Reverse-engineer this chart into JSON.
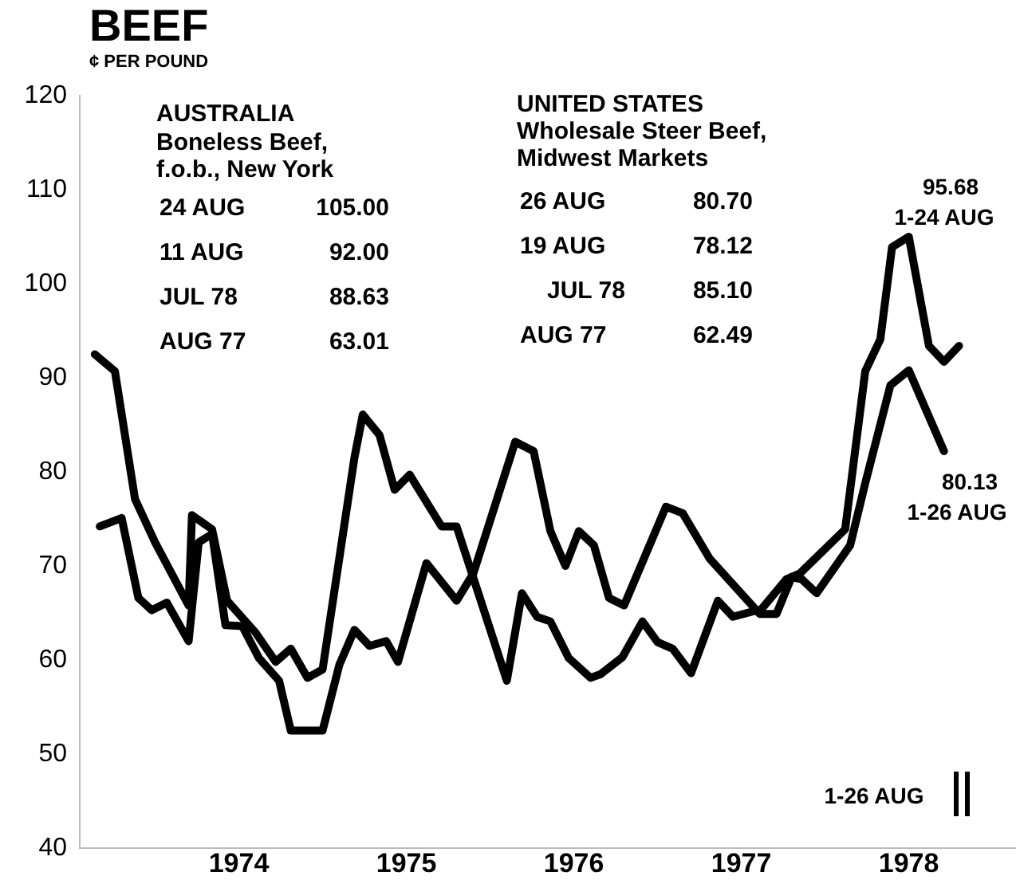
{
  "chart_data": {
    "type": "line",
    "title": "BEEF",
    "ylabel": "¢ PER POUND",
    "xlim": [
      1973.05,
      1978.64
    ],
    "xticks": [
      1974,
      1975,
      1976,
      1977,
      1978
    ],
    "ylim": [
      40,
      120
    ],
    "yticks": [
      40,
      50,
      60,
      70,
      80,
      90,
      100,
      110,
      120
    ],
    "grid": false,
    "legend": false,
    "marker": "none",
    "line_style": "solid",
    "series": [
      {
        "color": "#000000",
        "x": [
          1973.14,
          1973.26,
          1973.38,
          1973.5,
          1973.7,
          1973.72,
          1973.84,
          1973.93,
          1974.1,
          1974.22,
          1974.31,
          1974.41,
          1974.5,
          1974.69,
          1974.74,
          1974.84,
          1974.93,
          1975.02,
          1975.21,
          1975.3,
          1975.6,
          1975.69,
          1975.78,
          1975.86,
          1975.97,
          1976.1,
          1976.16,
          1976.29,
          1976.41,
          1976.5,
          1976.59,
          1976.7,
          1976.86,
          1976.95,
          1977.12,
          1977.27,
          1977.35,
          1977.62,
          1977.74,
          1977.83,
          1977.9,
          1978.0,
          1978.12,
          1978.21,
          1978.3
        ],
        "values": [
          92.5,
          90.7,
          77.1,
          72.5,
          65.8,
          75.4,
          73.9,
          66.3,
          62.9,
          59.8,
          61.2,
          58.1,
          59.0,
          81.5,
          86.1,
          83.9,
          78.1,
          79.7,
          74.2,
          74.2,
          57.8,
          67.1,
          64.6,
          64.1,
          60.2,
          58.1,
          58.5,
          60.3,
          64.1,
          61.9,
          61.2,
          58.6,
          66.3,
          64.6,
          65.4,
          68.6,
          69.2,
          73.9,
          90.7,
          94.1,
          103.9,
          105.0,
          93.4,
          91.7,
          93.4
        ]
      },
      {
        "color": "#000000",
        "x": [
          1973.17,
          1973.3,
          1973.4,
          1973.48,
          1973.57,
          1973.7,
          1973.76,
          1973.84,
          1973.92,
          1974.02,
          1974.12,
          1974.24,
          1974.31,
          1974.5,
          1974.6,
          1974.69,
          1974.78,
          1974.88,
          1974.95,
          1975.12,
          1975.3,
          1975.4,
          1975.65,
          1975.76,
          1975.86,
          1975.95,
          1976.03,
          1976.12,
          1976.21,
          1976.3,
          1976.55,
          1976.65,
          1976.81,
          1977.11,
          1977.21,
          1977.3,
          1977.36,
          1977.45,
          1977.65,
          1977.74,
          1977.89,
          1978.0,
          1978.21
        ],
        "values": [
          74.2,
          75.1,
          66.6,
          65.3,
          66.1,
          62.0,
          72.5,
          73.4,
          63.7,
          63.6,
          60.2,
          57.8,
          52.5,
          52.5,
          59.5,
          63.2,
          61.5,
          62.0,
          59.8,
          70.3,
          66.3,
          69.2,
          83.2,
          82.2,
          73.7,
          70.0,
          73.7,
          72.2,
          66.6,
          65.8,
          76.3,
          75.6,
          70.8,
          64.9,
          64.9,
          68.8,
          68.6,
          67.1,
          72.2,
          78.8,
          89.2,
          90.8,
          82.2
        ]
      }
    ],
    "annotations": [
      "AUSTRALIA",
      "Boneless Beef,",
      "f.o.b., New York",
      "24 AUG",
      "105.00",
      "11 AUG",
      "92.00",
      "JUL 78",
      "88.63",
      "AUG 77",
      "63.01",
      "UNITED STATES",
      "Wholesale Steer Beef,",
      "Midwest Markets",
      "26 AUG",
      "80.70",
      "19 AUG",
      "78.12",
      "JUL 78",
      "85.10",
      "AUG 77",
      "62.49",
      "95.68",
      "1-24 AUG",
      "80.13",
      "1-26 AUG",
      "1-26 AUG"
    ]
  }
}
